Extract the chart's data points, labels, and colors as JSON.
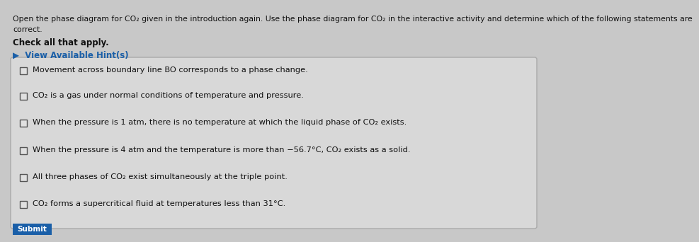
{
  "bg_color": "#c8c8c8",
  "header_line1": "Open the phase diagram for CO₂ given in the introduction again. Use the phase diagram for CO₂ in the interactive activity and determine which of the following statements are",
  "header_line2": "correct.",
  "check_all_text": "Check all that apply.",
  "hint_text": "▶  View Available Hint(s)",
  "hint_color": "#1a5fa8",
  "options": [
    "Movement across boundary line BO corresponds to a phase change.",
    "CO₂ is a gas under normal conditions of temperature and pressure.",
    "When the pressure is 1 atm, there is no temperature at which the liquid phase of CO₂ exists.",
    "When the pressure is 4 atm and the temperature is more than −56.7°C, CO₂ exists as a solid.",
    "All three phases of CO₂ exist simultaneously at the triple point.",
    "CO₂ forms a supercritical fluid at temperatures less than 31°C."
  ],
  "box_bg": "#d8d8d8",
  "box_edge": "#aaaaaa",
  "text_color": "#111111",
  "header_fontsize": 7.8,
  "check_fontsize": 8.5,
  "option_fontsize": 8.2,
  "hint_fontsize": 8.5,
  "submit_color": "#1a5fa8",
  "submit_bg": "#1a5fa8"
}
